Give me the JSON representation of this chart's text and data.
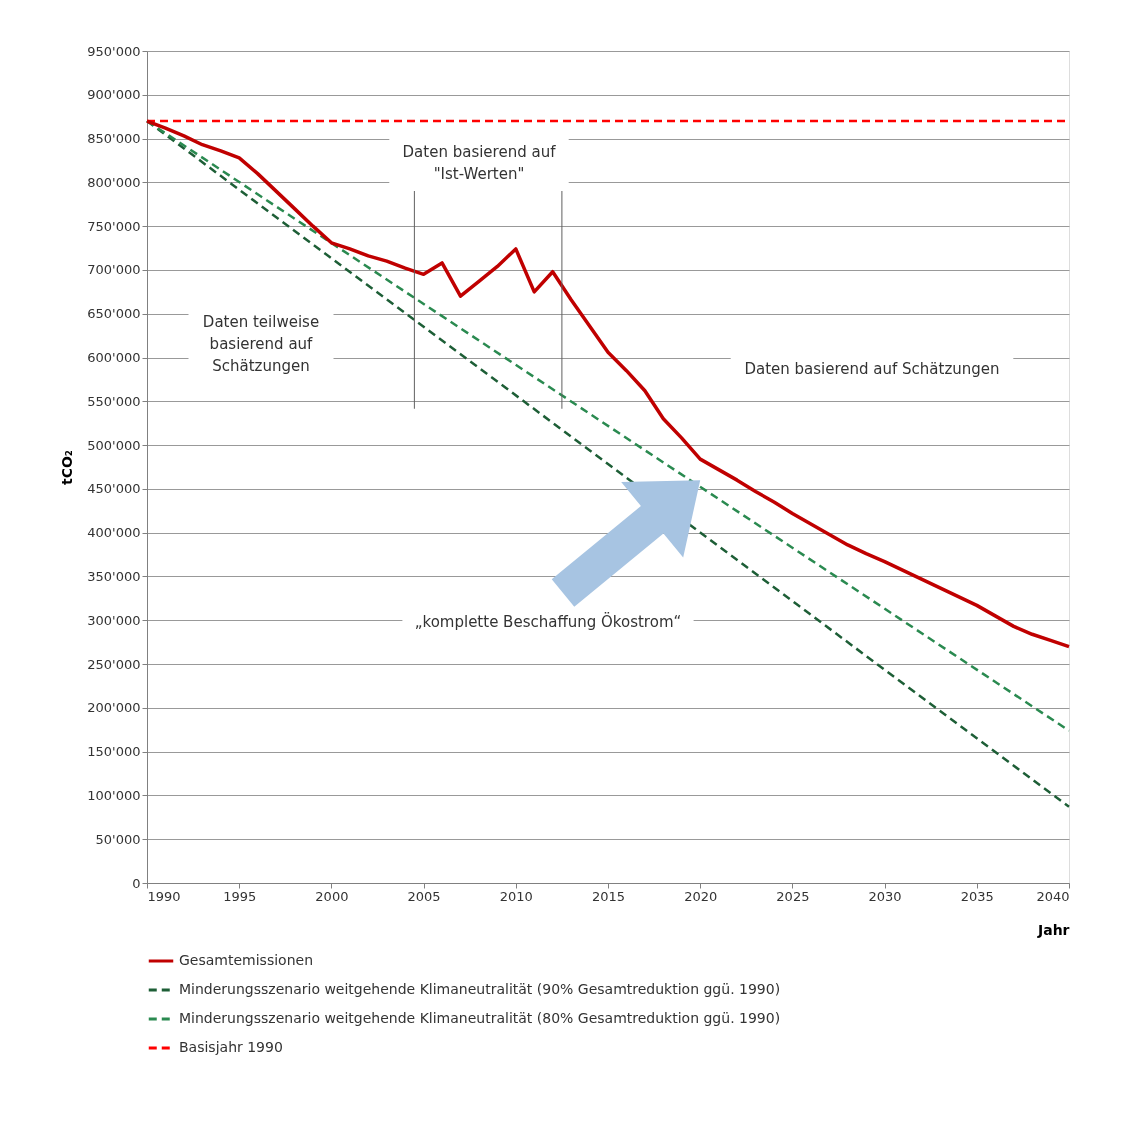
{
  "chart_data": {
    "type": "line",
    "xlabel": "Jahr",
    "ylabel": "tCO₂",
    "xlim": [
      1990,
      2040
    ],
    "xticks": [
      1990,
      1995,
      2000,
      2005,
      2010,
      2015,
      2020,
      2025,
      2030,
      2035,
      2040
    ],
    "ylim": [
      0,
      950000
    ],
    "yticks": [
      0,
      {
        "value": 50000,
        "label": "50'000"
      },
      {
        "value": 100000,
        "label": "100'000"
      },
      {
        "value": 150000,
        "label": "150'000"
      },
      {
        "value": 200000,
        "label": "200'000"
      },
      {
        "value": 250000,
        "label": "250'000"
      },
      {
        "value": 300000,
        "label": "300'000"
      },
      {
        "value": 350000,
        "label": "350'000"
      },
      {
        "value": 400000,
        "label": "400'000"
      },
      {
        "value": 450000,
        "label": "450'000"
      },
      {
        "value": 500000,
        "label": "500'000"
      },
      {
        "value": 550000,
        "label": "550'000"
      },
      {
        "value": 600000,
        "label": "600'000"
      },
      {
        "value": 650000,
        "label": "650'000"
      },
      {
        "value": 700000,
        "label": "700'000"
      },
      {
        "value": 750000,
        "label": "750'000"
      },
      {
        "value": 800000,
        "label": "800'000"
      },
      {
        "value": 850000,
        "label": "850'000"
      },
      {
        "value": 900000,
        "label": "900'000"
      },
      {
        "value": 950000,
        "label": "950'000"
      }
    ],
    "grid": "y",
    "legend": "bottom",
    "series": [
      {
        "name": "Gesamtemissionen",
        "color": "#c00000",
        "line_style": "solid",
        "x": [
          1990,
          1991,
          1992,
          1993,
          1994,
          1995,
          1996,
          1997,
          1998,
          1999,
          2000,
          2001,
          2002,
          2003,
          2004,
          2005,
          2006,
          2007,
          2008,
          2009,
          2010,
          2011,
          2012,
          2013,
          2014,
          2015,
          2016,
          2017,
          2018,
          2019,
          2020,
          2021,
          2022,
          2023,
          2024,
          2025,
          2026,
          2027,
          2028,
          2029,
          2030,
          2031,
          2032,
          2033,
          2034,
          2035,
          2036,
          2037,
          2038,
          2039,
          2040
        ],
        "values": [
          870000,
          862000,
          853000,
          843000,
          836000,
          828000,
          810000,
          790000,
          770000,
          750000,
          731000,
          724000,
          716000,
          710000,
          702000,
          695000,
          708000,
          670000,
          687000,
          704000,
          724000,
          675000,
          698000,
          666000,
          636000,
          606000,
          585000,
          562000,
          530000,
          508000,
          484000,
          472000,
          460000,
          447000,
          435000,
          422000,
          410000,
          398000,
          386000,
          376000,
          367000,
          357000,
          347000,
          337000,
          327000,
          317000,
          305000,
          293000,
          284000,
          277000,
          270000
        ]
      },
      {
        "name": "Minderungsszenario weitgehende Klimaneutralität (90% Gesamtreduktion ggü. 1990)",
        "color": "#1d5e36",
        "line_style": "dashed",
        "x": [
          1990,
          2040
        ],
        "values": [
          870000,
          87000
        ]
      },
      {
        "name": "Minderungsszenario weitgehende Klimaneutralität (80% Gesamtreduktion ggü. 1990)",
        "color": "#2a8a50",
        "line_style": "dashed",
        "x": [
          1990,
          2040
        ],
        "values": [
          870000,
          174000
        ]
      },
      {
        "name": "Basisjahr 1990",
        "color": "#ff0000",
        "line_style": "dashed",
        "x": [
          1990,
          2040
        ],
        "values": [
          870000,
          870000
        ]
      }
    ],
    "ref_lines": [
      {
        "axis": "x",
        "value": 2004.5,
        "color": "#606060"
      },
      {
        "axis": "x",
        "value": 2012.5,
        "color": "#606060"
      }
    ],
    "annotations": [
      "Daten teilweise basierend auf Schätzungen",
      "Daten basierend auf \"Ist-Werten\"",
      "Daten basierend auf Schätzungen",
      "„komplette Beschaffung Ökostrom“"
    ]
  }
}
